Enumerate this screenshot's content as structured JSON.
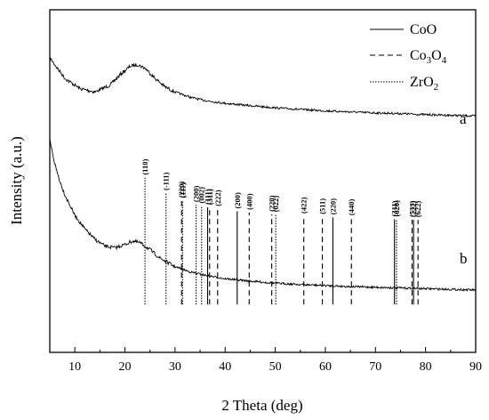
{
  "chart_data": {
    "type": "line",
    "xlabel": "2 Theta (deg)",
    "ylabel": "Intensity (a.u.)",
    "xlim": [
      5,
      90
    ],
    "xticks": [
      10,
      20,
      30,
      40,
      50,
      60,
      70,
      80,
      90
    ],
    "grid": false,
    "legend": {
      "placement": "top-right",
      "entries": [
        {
          "key": "CoO",
          "text": "CoO",
          "style": "solid"
        },
        {
          "key": "Co3O4",
          "text": "Co3O4",
          "text_main": "Co",
          "sub1": "3",
          "mid": "O",
          "sub2": "4",
          "style": "dashed"
        },
        {
          "key": "ZrO2",
          "text": "ZrO2",
          "text_main": "ZrO",
          "sub1": "2",
          "style": "dotted"
        }
      ]
    },
    "series": [
      {
        "name": "a",
        "x": [
          5,
          8,
          11,
          14,
          17,
          19,
          21,
          22.5,
          24,
          26,
          28,
          30,
          33,
          36,
          40,
          45,
          50,
          55,
          60,
          65,
          70,
          75,
          80,
          85,
          90
        ],
        "y": [
          0.86,
          0.8,
          0.77,
          0.76,
          0.78,
          0.81,
          0.835,
          0.84,
          0.83,
          0.8,
          0.775,
          0.76,
          0.745,
          0.735,
          0.727,
          0.72,
          0.714,
          0.709,
          0.705,
          0.702,
          0.699,
          0.697,
          0.694,
          0.692,
          0.69
        ]
      },
      {
        "name": "b",
        "x": [
          5,
          6,
          7,
          8,
          10,
          12,
          14,
          16,
          18,
          20,
          21.5,
          23,
          25,
          27,
          30,
          33,
          36,
          40,
          45,
          50,
          55,
          60,
          65,
          70,
          75,
          80,
          85,
          90
        ],
        "y": [
          0.62,
          0.55,
          0.5,
          0.46,
          0.4,
          0.36,
          0.33,
          0.31,
          0.305,
          0.315,
          0.325,
          0.32,
          0.3,
          0.275,
          0.25,
          0.235,
          0.225,
          0.215,
          0.208,
          0.202,
          0.198,
          0.195,
          0.192,
          0.19,
          0.188,
          0.186,
          0.184,
          0.182
        ]
      }
    ],
    "reference_lines": [
      {
        "x": 24.0,
        "phase": "ZrO2",
        "label": "(110)"
      },
      {
        "x": 28.2,
        "phase": "ZrO2",
        "label": "(-111)"
      },
      {
        "x": 31.3,
        "phase": "Co3O4",
        "label": "(220)"
      },
      {
        "x": 31.5,
        "phase": "ZrO2",
        "label": "(111)"
      },
      {
        "x": 34.2,
        "phase": "ZrO2",
        "label": "(200)"
      },
      {
        "x": 35.3,
        "phase": "ZrO2",
        "label": "(002)"
      },
      {
        "x": 36.5,
        "phase": "CoO",
        "label": "(111)"
      },
      {
        "x": 36.9,
        "phase": "Co3O4",
        "label": "(311)"
      },
      {
        "x": 38.5,
        "phase": "Co3O4",
        "label": "(222)"
      },
      {
        "x": 42.4,
        "phase": "CoO",
        "label": "(200)"
      },
      {
        "x": 44.8,
        "phase": "Co3O4",
        "label": "(400)"
      },
      {
        "x": 49.3,
        "phase": "Co3O4",
        "label": "(220)"
      },
      {
        "x": 50.1,
        "phase": "ZrO2",
        "label": "(022)"
      },
      {
        "x": 55.7,
        "phase": "Co3O4",
        "label": "(422)"
      },
      {
        "x": 59.4,
        "phase": "Co3O4",
        "label": "(511)"
      },
      {
        "x": 61.5,
        "phase": "CoO",
        "label": "(220)"
      },
      {
        "x": 65.2,
        "phase": "Co3O4",
        "label": "(440)"
      },
      {
        "x": 73.8,
        "phase": "CoO",
        "label": "(311)"
      },
      {
        "x": 74.2,
        "phase": "ZrO2",
        "label": "(620)"
      },
      {
        "x": 77.3,
        "phase": "Co3O4",
        "label": "(533)"
      },
      {
        "x": 77.6,
        "phase": "CoO",
        "label": "(222)"
      },
      {
        "x": 78.5,
        "phase": "Co3O4",
        "label": "(622)"
      }
    ]
  }
}
